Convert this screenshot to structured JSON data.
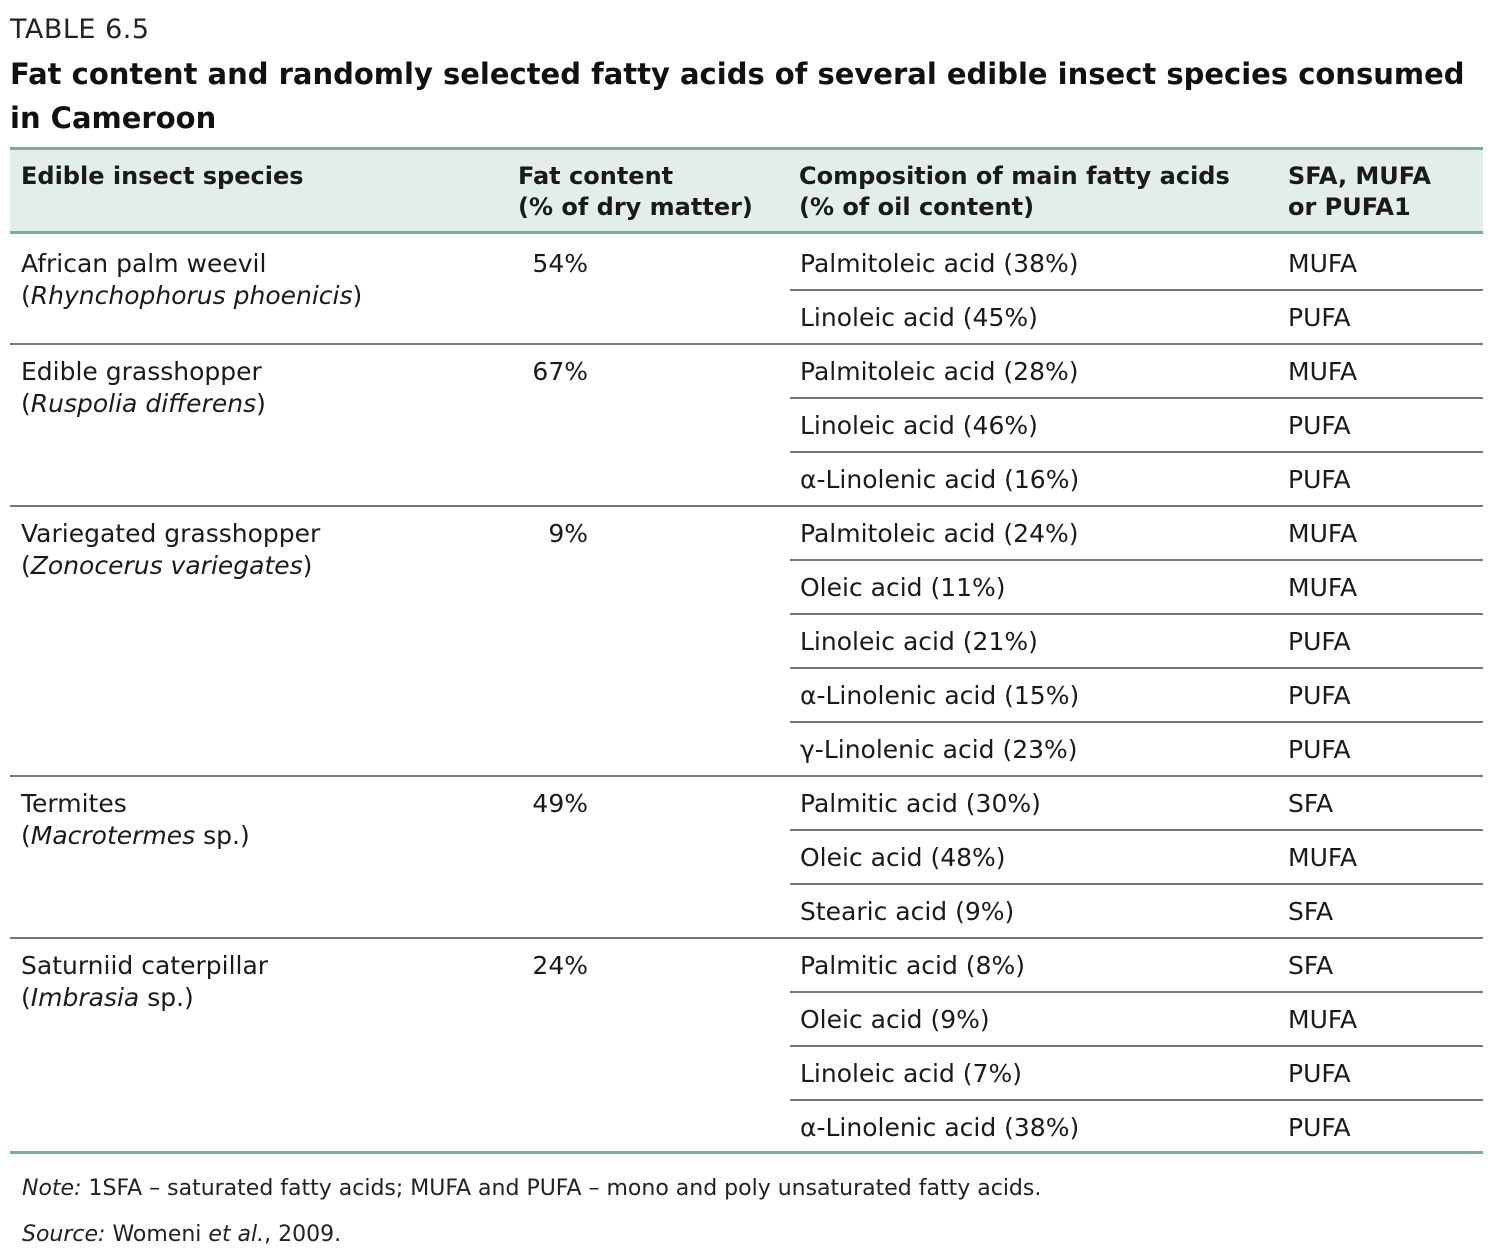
{
  "table_label": "TABLE 6.5",
  "title": "Fat content and randomly selected fatty acids of several edible insect species consumed in Cameroon",
  "headers": {
    "species": "Edible insect species",
    "fat_line1": "Fat content",
    "fat_line2": "(% of dry matter)",
    "comp_line1": "Composition of main fatty acids",
    "comp_line2": "(% of oil content)",
    "type_line1": "SFA, MUFA",
    "type_line2": "or PUFA1"
  },
  "groups": [
    {
      "name": "African palm weevil",
      "sci_open": "(",
      "sci": "Rhynchophorus phoenicis",
      "sci_close": ")",
      "fat": "54%",
      "acids": [
        {
          "acid": "Palmitoleic acid (38%)",
          "type": "MUFA"
        },
        {
          "acid": "Linoleic acid (45%)",
          "type": "PUFA"
        }
      ]
    },
    {
      "name": "Edible grasshopper",
      "sci_open": "(",
      "sci": "Ruspolia differens",
      "sci_close": ")",
      "fat": "67%",
      "acids": [
        {
          "acid": "Palmitoleic acid (28%)",
          "type": "MUFA"
        },
        {
          "acid": "Linoleic acid (46%)",
          "type": "PUFA"
        },
        {
          "acid": "α-Linolenic acid (16%)",
          "type": "PUFA"
        }
      ]
    },
    {
      "name": "Variegated grasshopper",
      "sci_open": "(",
      "sci": "Zonocerus variegates",
      "sci_close": ")",
      "fat": "9%",
      "acids": [
        {
          "acid": "Palmitoleic acid (24%)",
          "type": "MUFA"
        },
        {
          "acid": "Oleic acid (11%)",
          "type": "MUFA"
        },
        {
          "acid": "Linoleic acid (21%)",
          "type": "PUFA"
        },
        {
          "acid": "α-Linolenic acid (15%)",
          "type": "PUFA"
        },
        {
          "acid": "γ-Linolenic acid (23%)",
          "type": "PUFA"
        }
      ]
    },
    {
      "name": "Termites",
      "sci_open": "(",
      "sci": "Macrotermes",
      "sci_close": " sp.)",
      "fat": "49%",
      "acids": [
        {
          "acid": "Palmitic acid (30%)",
          "type": "SFA"
        },
        {
          "acid": "Oleic acid (48%)",
          "type": "MUFA"
        },
        {
          "acid": "Stearic acid (9%)",
          "type": "SFA"
        }
      ]
    },
    {
      "name": "Saturniid caterpillar",
      "sci_open": "(",
      "sci": "Imbrasia",
      "sci_close": " sp.)",
      "fat": "24%",
      "acids": [
        {
          "acid": "Palmitic acid (8%)",
          "type": "SFA"
        },
        {
          "acid": "Oleic acid (9%)",
          "type": "MUFA"
        },
        {
          "acid": "Linoleic acid (7%)",
          "type": "PUFA"
        },
        {
          "acid": "α-Linolenic acid (38%)",
          "type": "PUFA"
        }
      ]
    }
  ],
  "note": {
    "label": "Note:",
    "text": " 1SFA – saturated fatty acids; MUFA and PUFA – mono and poly unsaturated fatty acids."
  },
  "source": {
    "label": "Source:",
    "author": " Womeni ",
    "etal": "et al.",
    "rest": ", 2009."
  }
}
